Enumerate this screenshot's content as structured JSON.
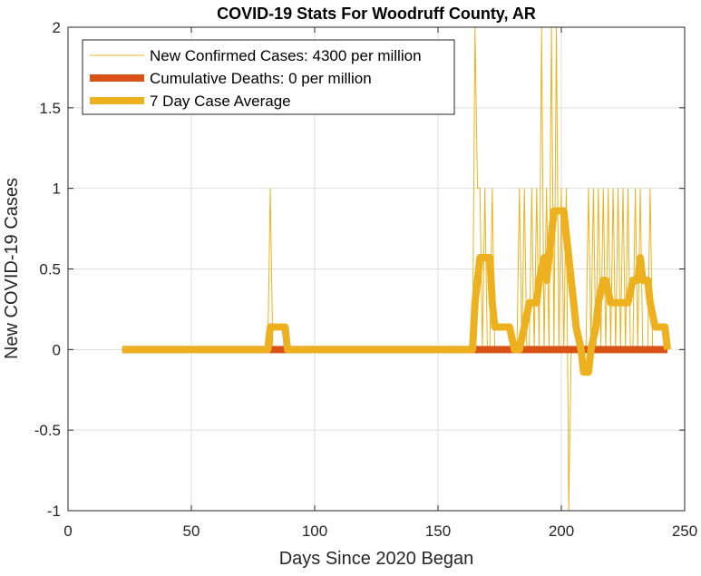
{
  "chart_data": {
    "type": "line",
    "title": "COVID-19 Stats For Woodruff County, AR",
    "xlabel": "Days Since 2020 Began",
    "ylabel": "New COVID-19 Cases",
    "xlim": [
      0,
      250
    ],
    "ylim": [
      -1,
      2
    ],
    "xticks": [
      0,
      50,
      100,
      150,
      200,
      250
    ],
    "yticks": [
      -1,
      -0.5,
      0,
      0.5,
      1,
      1.5,
      2
    ],
    "xtick_labels": [
      "0",
      "50",
      "100",
      "150",
      "200",
      "250"
    ],
    "ytick_labels": [
      "-1",
      "-0.5",
      "0",
      "0.5",
      "1",
      "1.5",
      "2"
    ],
    "grid": true,
    "legend_location": "top-left",
    "series": [
      {
        "name": "New Confirmed Cases: 4300 per million",
        "color": "#EDB120",
        "style": "thin",
        "x": [
          22,
          81,
          82,
          83,
          164,
          165,
          166,
          167,
          168,
          169,
          170,
          171,
          172,
          173,
          174,
          175,
          176,
          177,
          178,
          179,
          180,
          181,
          182,
          183,
          184,
          185,
          186,
          187,
          188,
          189,
          190,
          191,
          192,
          193,
          194,
          195,
          196,
          197,
          198,
          199,
          200,
          201,
          202,
          203,
          204,
          205,
          206,
          207,
          208,
          209,
          210,
          211,
          212,
          213,
          214,
          215,
          216,
          217,
          218,
          219,
          220,
          221,
          222,
          223,
          224,
          225,
          226,
          227,
          228,
          229,
          230,
          231,
          232,
          233,
          234,
          235,
          236,
          237,
          238,
          239,
          240,
          241,
          242,
          243
        ],
        "y": [
          0,
          0,
          1,
          0,
          0,
          2,
          1,
          1,
          0,
          1,
          0,
          0,
          1,
          0,
          0,
          0,
          0,
          0,
          0,
          0,
          0,
          0,
          0,
          1,
          0,
          1,
          0,
          0,
          1,
          0,
          1,
          0,
          2,
          0,
          1,
          0,
          2,
          0,
          2,
          0,
          1,
          0,
          1,
          -1,
          0,
          0,
          0,
          0,
          0,
          0,
          0,
          1,
          0,
          1,
          0,
          1,
          0,
          1,
          0,
          1,
          0,
          1,
          0,
          1,
          0,
          1,
          0,
          1,
          0,
          0,
          1,
          0,
          1,
          0,
          0,
          0,
          1,
          0,
          0,
          0,
          0,
          0,
          0,
          0
        ]
      },
      {
        "name": "Cumulative Deaths: 0 per million",
        "color": "#D95319",
        "style": "thick",
        "x": [
          22,
          243
        ],
        "y": [
          0,
          0
        ]
      },
      {
        "name": "7 Day Case Average",
        "color": "#EDB120",
        "style": "thick",
        "x": [
          22,
          81,
          82,
          88,
          89,
          164,
          165,
          166,
          167,
          168,
          169,
          171,
          172,
          173,
          177,
          179,
          181,
          183,
          185,
          187,
          188,
          190,
          191,
          193,
          194,
          196,
          197,
          198,
          199,
          201,
          203,
          205,
          206,
          208,
          209,
          211,
          212,
          214,
          215,
          217,
          218,
          220,
          222,
          224,
          225,
          227,
          229,
          231,
          232,
          233,
          235,
          236,
          238,
          240,
          242,
          243
        ],
        "y": [
          0,
          0,
          0.14,
          0.14,
          0,
          0,
          0.29,
          0.43,
          0.57,
          0.57,
          0.57,
          0.57,
          0.29,
          0.14,
          0.14,
          0.14,
          0,
          0,
          0.14,
          0.29,
          0.29,
          0.29,
          0.43,
          0.57,
          0.43,
          0.71,
          0.86,
          0.86,
          0.86,
          0.86,
          0.57,
          0.29,
          0.14,
          0,
          -0.14,
          -0.14,
          0,
          0.14,
          0.29,
          0.43,
          0.43,
          0.29,
          0.29,
          0.29,
          0.29,
          0.29,
          0.43,
          0.43,
          0.57,
          0.43,
          0.43,
          0.29,
          0.14,
          0.14,
          0.14,
          0
        ]
      }
    ]
  }
}
